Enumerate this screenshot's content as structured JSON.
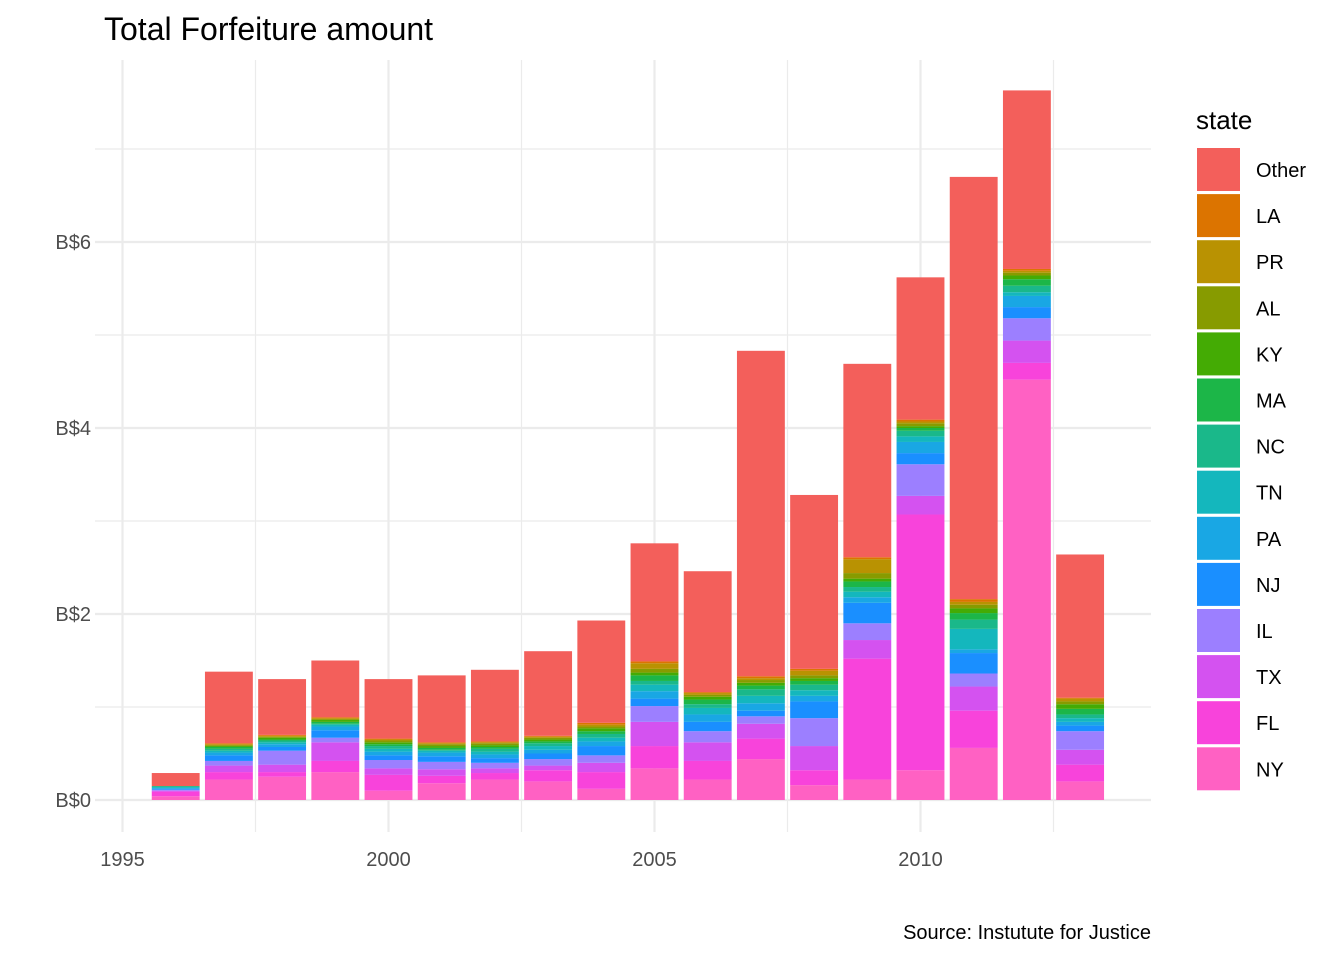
{
  "chart_data": {
    "type": "bar",
    "stacked": true,
    "title": "Total Forfeiture amount",
    "caption": "Source: Instutute for Justice",
    "xlabel": "",
    "ylabel": "",
    "grid": true,
    "xlim": [
      1995,
      2014
    ],
    "ylim": [
      0,
      7.6
    ],
    "x_ticks": [
      1995,
      2000,
      2005,
      2010
    ],
    "x_tick_labels": [
      "1995",
      "2000",
      "2005",
      "2010"
    ],
    "y_ticks": [
      0,
      2,
      4,
      6
    ],
    "y_tick_labels": [
      "B$0",
      "B$2",
      "B$4",
      "B$6"
    ],
    "legend": {
      "title": "state",
      "position": "right"
    },
    "categories": [
      1996,
      1997,
      1998,
      1999,
      2000,
      2001,
      2002,
      2003,
      2004,
      2005,
      2006,
      2007,
      2008,
      2009,
      2010,
      2011,
      2012,
      2013
    ],
    "series": [
      {
        "name": "NY",
        "color": "#FF61C3",
        "values": [
          0.04,
          0.22,
          0.25,
          0.3,
          0.1,
          0.18,
          0.22,
          0.2,
          0.12,
          0.34,
          0.22,
          0.44,
          0.16,
          0.22,
          0.32,
          0.56,
          4.52,
          0.2
        ]
      },
      {
        "name": "FL",
        "color": "#F843DB",
        "values": [
          0.05,
          0.08,
          0.05,
          0.12,
          0.17,
          0.08,
          0.07,
          0.12,
          0.18,
          0.24,
          0.2,
          0.22,
          0.16,
          1.3,
          2.75,
          0.4,
          0.18,
          0.18
        ]
      },
      {
        "name": "TX",
        "color": "#D452F0",
        "values": [
          0.01,
          0.07,
          0.08,
          0.2,
          0.07,
          0.07,
          0.05,
          0.05,
          0.1,
          0.26,
          0.2,
          0.16,
          0.26,
          0.2,
          0.2,
          0.26,
          0.24,
          0.16
        ]
      },
      {
        "name": "IL",
        "color": "#9C7FFF",
        "values": [
          0.01,
          0.05,
          0.15,
          0.05,
          0.09,
          0.08,
          0.06,
          0.07,
          0.08,
          0.17,
          0.12,
          0.08,
          0.3,
          0.18,
          0.34,
          0.14,
          0.24,
          0.2
        ]
      },
      {
        "name": "NJ",
        "color": "#1A8FFF",
        "values": [
          0.01,
          0.06,
          0.04,
          0.08,
          0.05,
          0.06,
          0.05,
          0.06,
          0.1,
          0.08,
          0.1,
          0.06,
          0.18,
          0.22,
          0.12,
          0.22,
          0.12,
          0.06
        ]
      },
      {
        "name": "PA",
        "color": "#19A7E4",
        "values": [
          0.01,
          0.03,
          0.03,
          0.04,
          0.04,
          0.04,
          0.04,
          0.04,
          0.05,
          0.08,
          0.08,
          0.08,
          0.06,
          0.06,
          0.12,
          0.04,
          0.12,
          0.04
        ]
      },
      {
        "name": "TN",
        "color": "#14B7BD",
        "values": [
          0.01,
          0.02,
          0.02,
          0.02,
          0.03,
          0.02,
          0.03,
          0.04,
          0.04,
          0.07,
          0.07,
          0.08,
          0.06,
          0.06,
          0.06,
          0.22,
          0.04,
          0.04
        ]
      },
      {
        "name": "NC",
        "color": "#1AB88A",
        "values": [
          0.01,
          0.02,
          0.02,
          0.01,
          0.03,
          0.01,
          0.03,
          0.03,
          0.04,
          0.04,
          0.04,
          0.07,
          0.06,
          0.05,
          0.06,
          0.1,
          0.07,
          0.04
        ]
      },
      {
        "name": "MA",
        "color": "#1CB648",
        "values": [
          0.0,
          0.02,
          0.01,
          0.02,
          0.02,
          0.02,
          0.02,
          0.02,
          0.03,
          0.06,
          0.05,
          0.04,
          0.04,
          0.06,
          0.03,
          0.07,
          0.07,
          0.06
        ]
      },
      {
        "name": "KY",
        "color": "#44AB04",
        "values": [
          0.0,
          0.01,
          0.02,
          0.02,
          0.02,
          0.02,
          0.02,
          0.02,
          0.03,
          0.03,
          0.03,
          0.03,
          0.03,
          0.03,
          0.02,
          0.05,
          0.04,
          0.05
        ]
      },
      {
        "name": "AL",
        "color": "#879B00",
        "values": [
          0.0,
          0.01,
          0.01,
          0.01,
          0.02,
          0.02,
          0.02,
          0.02,
          0.02,
          0.04,
          0.02,
          0.03,
          0.03,
          0.06,
          0.03,
          0.04,
          0.03,
          0.03
        ]
      },
      {
        "name": "PR",
        "color": "#B99202",
        "values": [
          0.0,
          0.01,
          0.01,
          0.01,
          0.01,
          0.01,
          0.01,
          0.01,
          0.02,
          0.06,
          0.02,
          0.02,
          0.05,
          0.15,
          0.02,
          0.03,
          0.02,
          0.03
        ]
      },
      {
        "name": "LA",
        "color": "#DC7400",
        "values": [
          0.0,
          0.01,
          0.01,
          0.01,
          0.01,
          0.01,
          0.01,
          0.01,
          0.02,
          0.02,
          0.01,
          0.02,
          0.02,
          0.02,
          0.02,
          0.03,
          0.02,
          0.01
        ]
      },
      {
        "name": "Other",
        "color": "#F35F5B",
        "values": [
          0.14,
          0.77,
          0.6,
          0.61,
          0.64,
          0.72,
          0.77,
          0.91,
          1.1,
          1.27,
          1.3,
          3.5,
          1.87,
          2.08,
          1.53,
          4.54,
          1.92,
          1.54
        ]
      }
    ]
  }
}
